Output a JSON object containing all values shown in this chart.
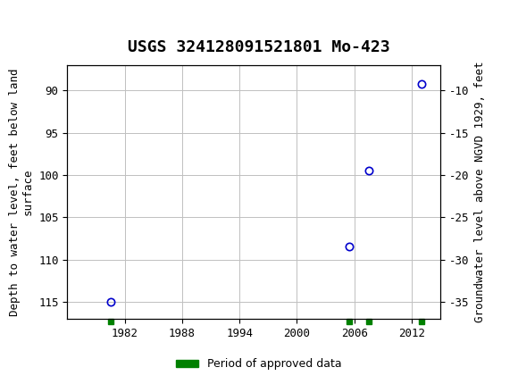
{
  "title": "USGS 324128091521801 Mo-423",
  "ylabel_left": "Depth to water level, feet below land\nsurface",
  "ylabel_right": "Groundwater level above NGVD 1929, feet",
  "header_color": "#006633",
  "data_points": [
    {
      "year": 1980.5,
      "depth": 115.0
    },
    {
      "year": 2005.5,
      "depth": 108.5
    },
    {
      "year": 2007.5,
      "depth": 99.5
    },
    {
      "year": 2013.0,
      "depth": 89.2
    }
  ],
  "approved_markers": [
    1980.5,
    2005.5,
    2007.5,
    2013.0
  ],
  "ylim_left": [
    117,
    87
  ],
  "ylim_right": [
    -37,
    -7
  ],
  "xlim": [
    1976,
    2015
  ],
  "xticks": [
    1982,
    1988,
    1994,
    2000,
    2006,
    2012
  ],
  "yticks_left": [
    90,
    95,
    100,
    105,
    110,
    115
  ],
  "yticks_right": [
    -10,
    -15,
    -20,
    -25,
    -30,
    -35
  ],
  "grid_color": "#c0c0c0",
  "point_color": "#0000cc",
  "approved_color": "#008000",
  "point_size": 6,
  "approved_size": 4,
  "bg_color": "#ffffff",
  "font_family": "DejaVu Sans Mono",
  "title_fontsize": 13,
  "tick_fontsize": 9,
  "label_fontsize": 9,
  "legend_label": "Period of approved data"
}
